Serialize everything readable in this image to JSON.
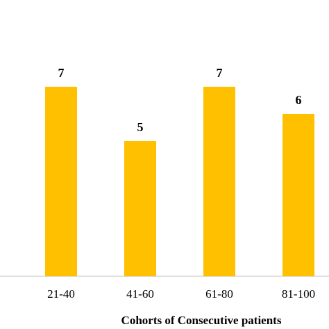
{
  "chart_data": {
    "type": "bar",
    "x_label": "Cohorts of Consecutive patients",
    "categories": [
      "21-40",
      "41-60",
      "61-80",
      "81-100"
    ],
    "values": [
      7,
      5,
      7,
      6
    ],
    "color": "#ffc000",
    "ylim": [
      0,
      10
    ]
  }
}
